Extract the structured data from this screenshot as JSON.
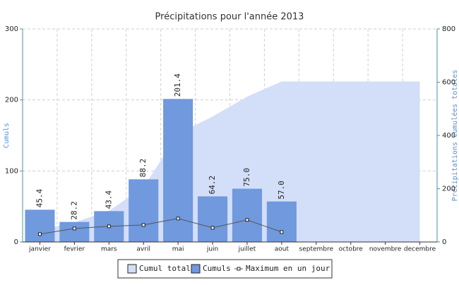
{
  "chart_data": {
    "type": "bar",
    "title": "Précipitations pour l'année 2013",
    "categories": [
      "janvier",
      "fevrier",
      "mars",
      "avril",
      "mai",
      "juin",
      "juillet",
      "aout",
      "septembre",
      "octobre",
      "novembre",
      "decembre"
    ],
    "y_label": "Cumuls",
    "y2_label": "Précipitations cumulées totales",
    "ylim": [
      0,
      300
    ],
    "yticks": [
      0,
      100,
      200,
      300
    ],
    "y2lim": [
      0,
      800
    ],
    "y2ticks": [
      0,
      200,
      400,
      600,
      800
    ],
    "grid": true,
    "legend": "bottom",
    "series": [
      {
        "name": "Cumul total",
        "type": "area",
        "axis": "y2",
        "color": "#d3def8",
        "values": [
          45.4,
          73.6,
          117,
          205.2,
          406.6,
          470.8,
          545.8,
          602.8,
          602.8,
          602.8,
          602.8,
          602.8
        ]
      },
      {
        "name": "Cumuls",
        "type": "bar",
        "color": "#7099de",
        "values": [
          45.4,
          28.2,
          43.4,
          88.2,
          201.4,
          64.2,
          75.0,
          57.0,
          null,
          null,
          null,
          null
        ],
        "value_labels": [
          "45.4",
          "28.2",
          "43.4",
          "88.2",
          "201.4",
          "64.2",
          "75.0",
          "57.0",
          null,
          null,
          null,
          null
        ]
      },
      {
        "name": "Maximum en un jour",
        "type": "line",
        "color": "#555555",
        "values": [
          11,
          19,
          22,
          24,
          33,
          20,
          31,
          14,
          null,
          null,
          null,
          null
        ]
      }
    ]
  }
}
